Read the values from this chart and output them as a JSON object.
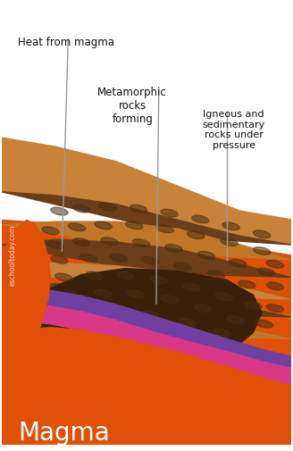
{
  "bg_white": "#ffffff",
  "magma_color": "#e05008",
  "layer_tan": "#c8823a",
  "layer_brown_dark": "#6b3d18",
  "layer_brown_mid": "#8b5a28",
  "layer_tan2": "#c07828",
  "layer_dark": "#3a2008",
  "layer_darkbrown": "#5a3818",
  "purple_color": "#7040a0",
  "pink_color": "#d83888",
  "spot_color": "#4a2e10",
  "line_color": "#999999",
  "text_dark": "#111111",
  "text_white": "#ffffff",
  "label1": "Heat from magma",
  "label2": "Metamorphic\nrocks\nforming",
  "label3": "Igneous and\nsedimentary\nrocks under\npressure",
  "label_magma": "Magma",
  "watermark": "eschooltoday.com"
}
